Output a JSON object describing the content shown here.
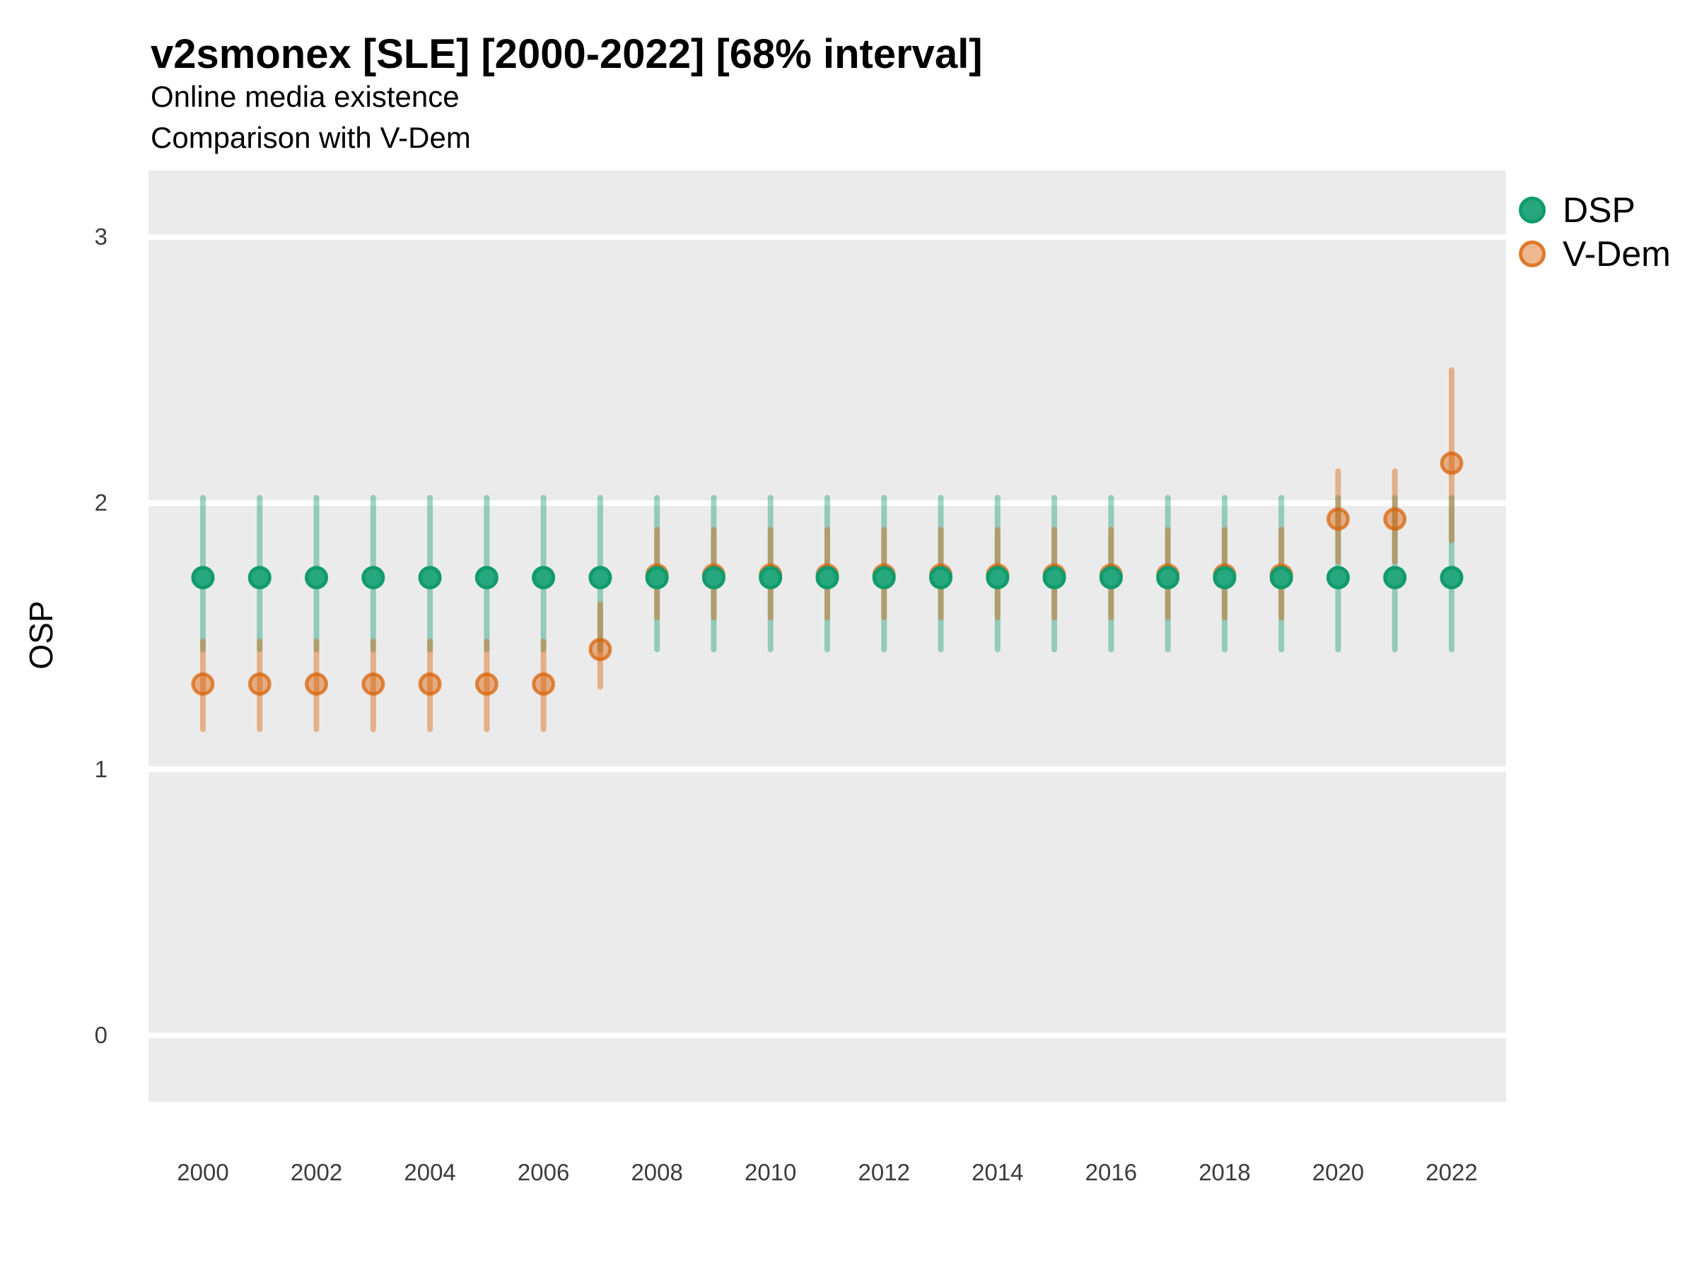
{
  "header": {
    "title": "v2smonex [SLE] [2000-2022] [68% interval]",
    "subtitle": "Online media existence",
    "subtitle2": "Comparison with V-Dem"
  },
  "axes": {
    "y_label": "OSP",
    "y_ticks": [
      0,
      1,
      2,
      3
    ],
    "x_ticks": [
      2000,
      2002,
      2004,
      2006,
      2008,
      2010,
      2012,
      2014,
      2016,
      2018,
      2020,
      2022
    ]
  },
  "legend": {
    "items": [
      {
        "label": "DSP"
      },
      {
        "label": "V-Dem"
      }
    ]
  },
  "colors": {
    "panel_background": "#ebebeb",
    "gridline": "#ffffff",
    "dsp_point_fill": "#26a77e",
    "dsp_point_stroke": "#119b6c",
    "dsp_bar": "rgba(27,158,119,0.42)",
    "vdem_point_fill": "rgba(217,95,2,0.45)",
    "vdem_point_stroke": "rgba(217,95,2,0.7)",
    "vdem_bar": "rgba(217,95,2,0.42)"
  },
  "chart_data": {
    "type": "scatter",
    "subtype": "pointrange",
    "title": "v2smonex [SLE] [2000-2022] [68% interval]",
    "subtitle": "Online media existence",
    "annotation": "Comparison with V-Dem",
    "interval": "68%",
    "xlabel": "",
    "ylabel": "OSP",
    "ylim": [
      -0.25,
      3.25
    ],
    "xlim": [
      2000,
      2022
    ],
    "grid": "horizontal-only",
    "legend_position": "right",
    "x": [
      2000,
      2001,
      2002,
      2003,
      2004,
      2005,
      2006,
      2007,
      2008,
      2009,
      2010,
      2011,
      2012,
      2013,
      2014,
      2015,
      2016,
      2017,
      2018,
      2019,
      2020,
      2021,
      2022
    ],
    "series": [
      {
        "name": "DSP",
        "base_color": "#1b9e77",
        "values": [
          1.72,
          1.72,
          1.72,
          1.72,
          1.72,
          1.72,
          1.72,
          1.72,
          1.72,
          1.72,
          1.72,
          1.72,
          1.72,
          1.72,
          1.72,
          1.72,
          1.72,
          1.72,
          1.72,
          1.72,
          1.72,
          1.72,
          1.72
        ],
        "lo": [
          1.45,
          1.45,
          1.45,
          1.45,
          1.45,
          1.45,
          1.45,
          1.45,
          1.45,
          1.45,
          1.45,
          1.45,
          1.45,
          1.45,
          1.45,
          1.45,
          1.45,
          1.45,
          1.45,
          1.45,
          1.45,
          1.45,
          1.45
        ],
        "hi": [
          2.02,
          2.02,
          2.02,
          2.02,
          2.02,
          2.02,
          2.02,
          2.02,
          2.02,
          2.02,
          2.02,
          2.02,
          2.02,
          2.02,
          2.02,
          2.02,
          2.02,
          2.02,
          2.02,
          2.02,
          2.02,
          2.02,
          2.02
        ]
      },
      {
        "name": "V-Dem",
        "base_color": "#d95f02",
        "values": [
          1.32,
          1.32,
          1.32,
          1.32,
          1.32,
          1.32,
          1.32,
          1.45,
          1.73,
          1.73,
          1.73,
          1.73,
          1.73,
          1.73,
          1.73,
          1.73,
          1.73,
          1.73,
          1.73,
          1.73,
          1.94,
          1.94,
          2.15
        ],
        "lo": [
          1.15,
          1.15,
          1.15,
          1.15,
          1.15,
          1.15,
          1.15,
          1.31,
          1.57,
          1.57,
          1.57,
          1.57,
          1.57,
          1.57,
          1.57,
          1.57,
          1.57,
          1.57,
          1.57,
          1.57,
          1.78,
          1.78,
          1.86
        ],
        "hi": [
          1.48,
          1.48,
          1.48,
          1.48,
          1.48,
          1.48,
          1.48,
          1.62,
          1.9,
          1.9,
          1.9,
          1.9,
          1.9,
          1.9,
          1.9,
          1.9,
          1.9,
          1.9,
          1.9,
          1.9,
          2.12,
          2.12,
          2.5
        ]
      }
    ]
  }
}
